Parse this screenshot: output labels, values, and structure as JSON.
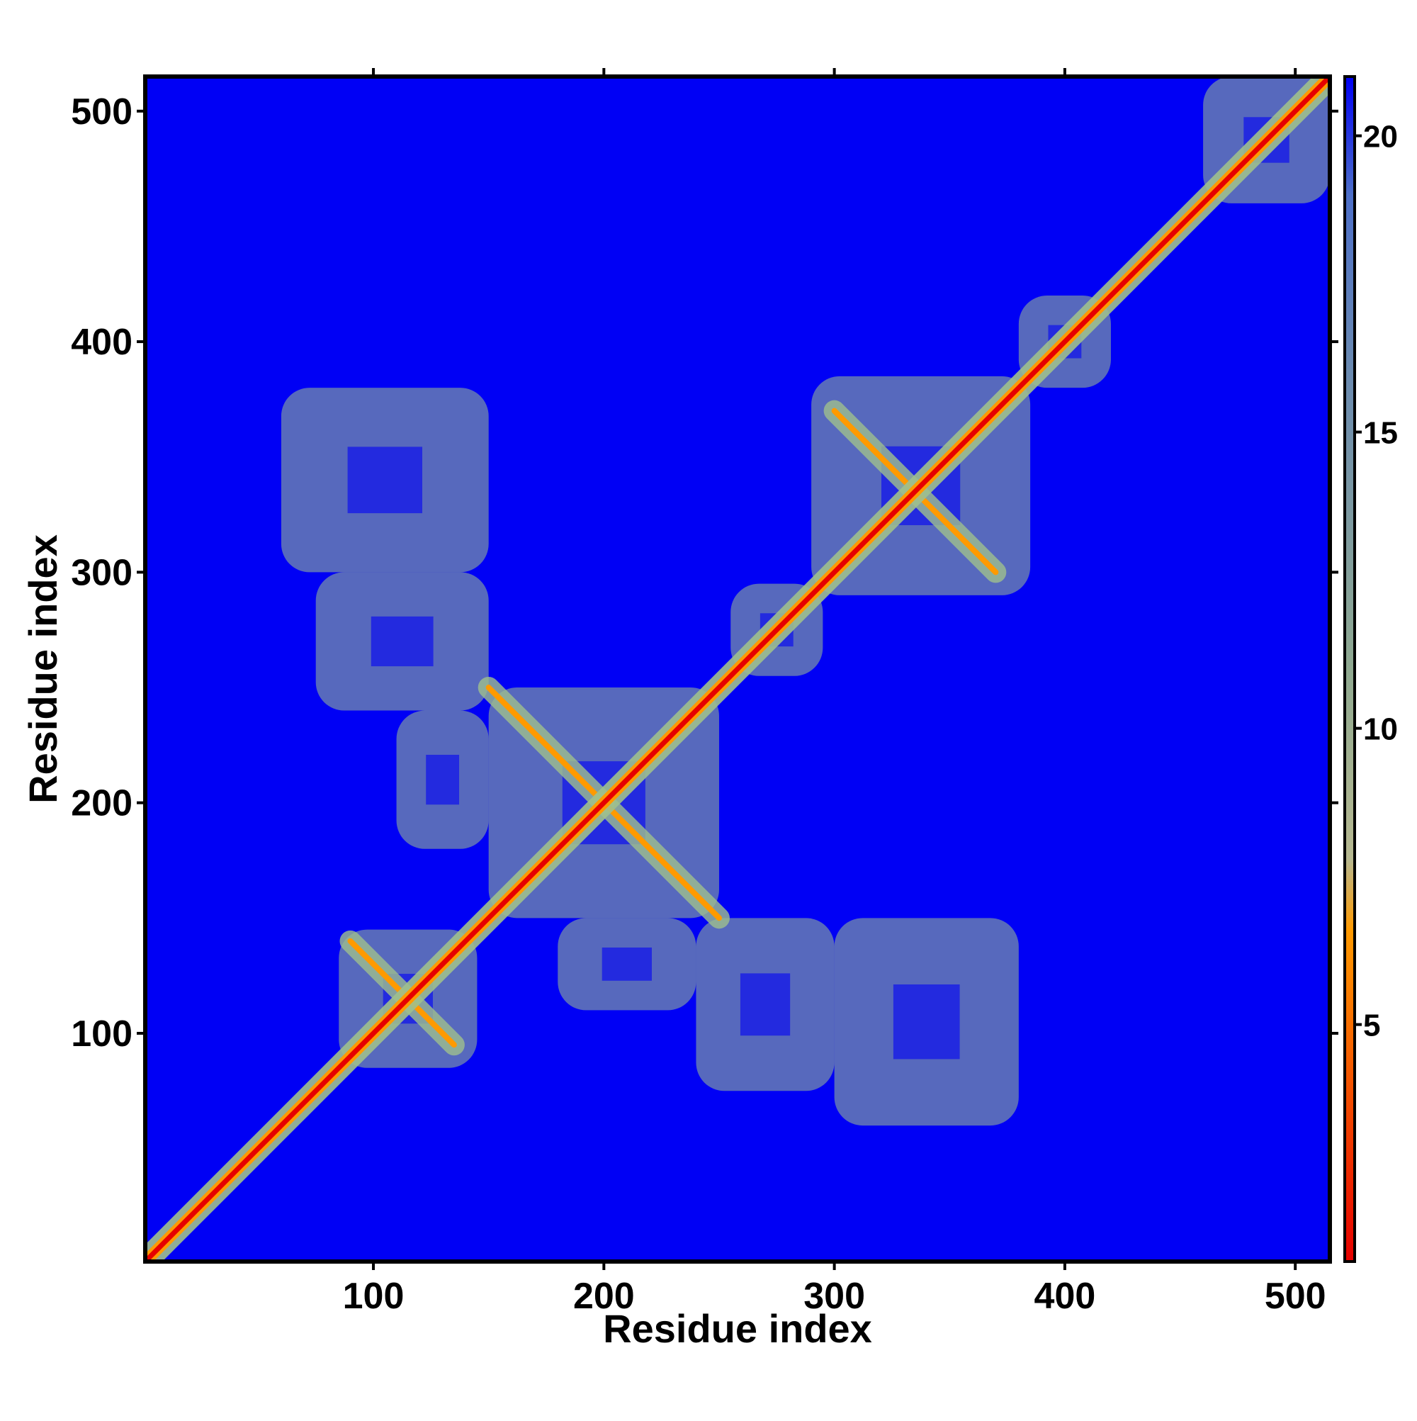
{
  "chart_data": {
    "type": "heatmap",
    "title": "",
    "xlabel": "Residue index",
    "ylabel": "Residue index",
    "xlim": [
      1,
      515
    ],
    "ylim": [
      1,
      515
    ],
    "x_ticks": [
      100,
      200,
      300,
      400,
      500
    ],
    "y_ticks": [
      100,
      200,
      300,
      400,
      500
    ],
    "colorbar": {
      "range": [
        1,
        21
      ],
      "ticks": [
        5,
        10,
        15,
        20
      ],
      "colors": {
        "near": "#e60000",
        "mid": "#ff9a00",
        "contact": "#9fc08e",
        "far": "#0000f5"
      }
    },
    "background_color": "#0000f5",
    "diagonal": {
      "from": 1,
      "to": 515
    },
    "contact_regions": [
      {
        "x": [
          85,
          145
        ],
        "y": [
          85,
          145
        ]
      },
      {
        "x": [
          150,
          250
        ],
        "y": [
          150,
          250
        ]
      },
      {
        "x": [
          255,
          295
        ],
        "y": [
          255,
          295
        ]
      },
      {
        "x": [
          290,
          385
        ],
        "y": [
          290,
          385
        ]
      },
      {
        "x": [
          380,
          420
        ],
        "y": [
          380,
          420
        ]
      },
      {
        "x": [
          460,
          515
        ],
        "y": [
          460,
          515
        ]
      },
      {
        "x": [
          75,
          150
        ],
        "y": [
          240,
          300
        ]
      },
      {
        "x": [
          240,
          300
        ],
        "y": [
          75,
          150
        ]
      },
      {
        "x": [
          60,
          150
        ],
        "y": [
          300,
          380
        ]
      },
      {
        "x": [
          300,
          380
        ],
        "y": [
          60,
          150
        ]
      },
      {
        "x": [
          110,
          150
        ],
        "y": [
          180,
          240
        ]
      },
      {
        "x": [
          180,
          240
        ],
        "y": [
          110,
          150
        ]
      }
    ],
    "antiparallel_bands": [
      {
        "x": [
          150,
          200
        ],
        "y": [
          250,
          200
        ]
      },
      {
        "x": [
          200,
          250
        ],
        "y": [
          200,
          150
        ]
      },
      {
        "x": [
          90,
          135
        ],
        "y": [
          140,
          95
        ]
      },
      {
        "x": [
          300,
          370
        ],
        "y": [
          370,
          300
        ]
      }
    ]
  }
}
